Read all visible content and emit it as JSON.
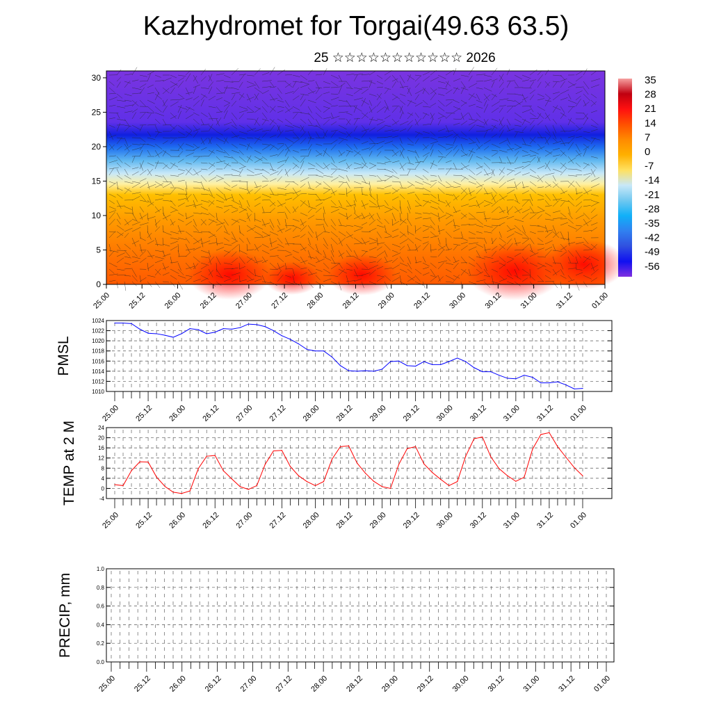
{
  "title": "Kazhydromet for Torgai(49.63 63.5)",
  "subtitle": "25 ☆☆☆☆☆☆☆☆☆☆☆ 2026",
  "chart_data": [
    {
      "type": "heatmap",
      "name": "temperature-wind-cross-section",
      "yticks": [
        "0",
        "5",
        "10",
        "15",
        "20",
        "25",
        "30"
      ],
      "ylim": [
        0,
        31
      ],
      "xticks": [
        "25.00",
        "25.12",
        "26.00",
        "26.12",
        "27.00",
        "27.12",
        "28.00",
        "28.12",
        "29.00",
        "29.12",
        "30.00",
        "30.12",
        "31.00",
        "31.12",
        "01.00"
      ],
      "colorbar": {
        "labels": [
          "35",
          "28",
          "21",
          "14",
          "7",
          "0",
          "-7",
          "-14",
          "-21",
          "-28",
          "-35",
          "-42",
          "-49",
          "-56"
        ],
        "colors": [
          "#f6a0a0",
          "#c00010",
          "#ff1010",
          "#ff5000",
          "#ff8a00",
          "#ffb000",
          "#ffe060",
          "#c8e8f8",
          "#70c8f0",
          "#10b0f8",
          "#3080f0",
          "#3050e0",
          "#1010f0",
          "#8030e0"
        ]
      }
    },
    {
      "type": "line",
      "name": "pmsl",
      "ylabel": "PMSL",
      "ylim": [
        1010,
        1024
      ],
      "yticks": [
        "1010",
        "1012",
        "1014",
        "1016",
        "1018",
        "1020",
        "1022",
        "1024"
      ],
      "xticks": [
        "25.00",
        "25.12",
        "26.00",
        "26.12",
        "27.00",
        "27.12",
        "28.00",
        "28.12",
        "29.00",
        "29.12",
        "30.00",
        "30.12",
        "31.00",
        "31.12",
        "01.00"
      ],
      "x_step_hours": 3,
      "color": "#0000ff",
      "values": [
        1023.5,
        1023.5,
        1023.4,
        1022.3,
        1021.5,
        1021.4,
        1021.1,
        1020.7,
        1021.4,
        1022.4,
        1022.2,
        1021.4,
        1021.7,
        1022.4,
        1022.3,
        1022.6,
        1023.3,
        1023.2,
        1022.8,
        1022.0,
        1021.0,
        1020.3,
        1019.4,
        1018.3,
        1018.0,
        1018.0,
        1016.8,
        1015.1,
        1014.1,
        1014.0,
        1014.1,
        1014.0,
        1014.4,
        1015.9,
        1016.0,
        1015.1,
        1015.0,
        1015.9,
        1015.3,
        1015.3,
        1015.9,
        1016.6,
        1015.9,
        1014.7,
        1013.9,
        1013.9,
        1013.2,
        1012.6,
        1012.5,
        1013.2,
        1012.8,
        1011.7,
        1011.7,
        1011.9,
        1011.3,
        1010.5,
        1010.6
      ]
    },
    {
      "type": "line",
      "name": "temp-2m",
      "ylabel": "TEMP at 2 M",
      "ylim": [
        -4,
        24
      ],
      "yticks": [
        "-4",
        "0",
        "4",
        "8",
        "12",
        "16",
        "20",
        "24"
      ],
      "xticks": [
        "25.00",
        "25.12",
        "26.00",
        "26.12",
        "27.00",
        "27.12",
        "28.00",
        "28.12",
        "29.00",
        "29.12",
        "30.00",
        "30.12",
        "31.00",
        "31.12",
        "01.00"
      ],
      "x_step_hours": 3,
      "color": "#ff0000",
      "values": [
        1.5,
        1.1,
        7,
        10.5,
        10.4,
        4.5,
        0.8,
        -1.5,
        -2,
        -1,
        7.8,
        12.7,
        13,
        7,
        3.8,
        0.7,
        -0.4,
        1.1,
        9.5,
        14.8,
        15,
        8.7,
        5,
        2.7,
        1.1,
        2.7,
        11.5,
        16.5,
        16.8,
        10,
        6,
        2.8,
        0.7,
        0,
        9.5,
        15.7,
        16.5,
        9.7,
        6.3,
        3.6,
        1.1,
        2.7,
        12.7,
        19.6,
        20.3,
        12.5,
        7.8,
        5,
        2.8,
        4.4,
        15.5,
        21.3,
        22,
        16.5,
        12.3,
        8.2,
        5
      ]
    },
    {
      "type": "bar",
      "name": "precip",
      "ylabel": "PRECIP, mm",
      "ylim": [
        0,
        1
      ],
      "yticks": [
        "0.0",
        "0.2",
        "0.4",
        "0.6",
        "0.8",
        "1.0"
      ],
      "xticks": [
        "25.00",
        "25.12",
        "26.00",
        "26.12",
        "27.00",
        "27.12",
        "28.00",
        "28.12",
        "29.00",
        "29.12",
        "30.00",
        "30.12",
        "31.00",
        "31.12",
        "01.00"
      ],
      "values": []
    }
  ]
}
